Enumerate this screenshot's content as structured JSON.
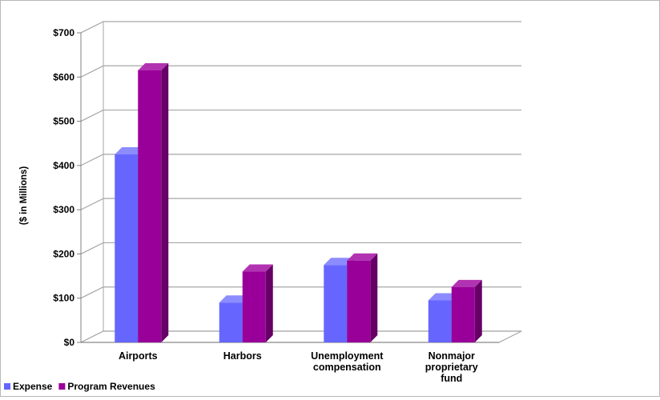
{
  "chart_data": {
    "type": "bar",
    "title": "",
    "xlabel": "",
    "ylabel": "($ in Millions)",
    "ylim": [
      0,
      700
    ],
    "y_ticks": [
      "$0",
      "$100",
      "$200",
      "$300",
      "$400",
      "$500",
      "$600",
      "$700"
    ],
    "categories": [
      [
        "Airports"
      ],
      [
        "Harbors"
      ],
      [
        "Unemployment",
        "compensation"
      ],
      [
        "Nonmajor",
        "proprietary",
        "fund"
      ]
    ],
    "series": [
      {
        "name": "Expense",
        "values": [
          425,
          90,
          175,
          95
        ],
        "color": "#6666ff",
        "side_color": "#4a4ad0",
        "top_color": "#8c8cff"
      },
      {
        "name": "Program Revenues",
        "values": [
          615,
          160,
          185,
          125
        ],
        "color": "#990099",
        "side_color": "#660066",
        "top_color": "#b233b2"
      }
    ],
    "grid": true,
    "legend_position": "bottom-left",
    "style": "3d-clustered-column"
  }
}
